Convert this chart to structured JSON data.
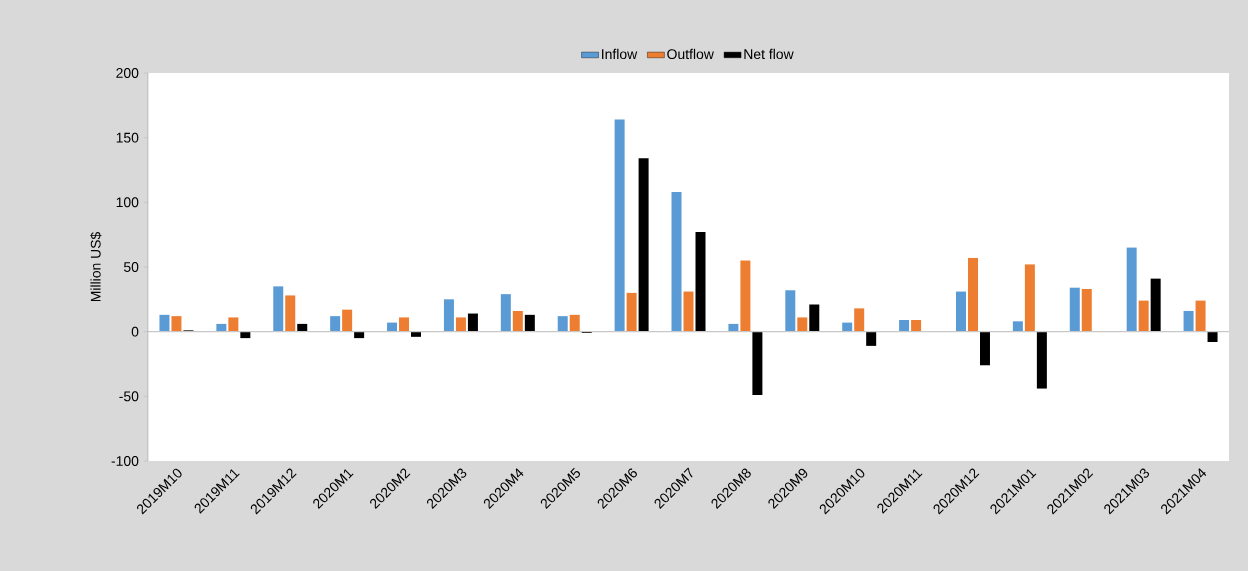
{
  "chart_data": {
    "type": "bar",
    "ylabel": "Million US$",
    "categories": [
      "2019M10",
      "2019M11",
      "2019M12",
      "2020M1",
      "2020M2",
      "2020M3",
      "2020M4",
      "2020M5",
      "2020M6",
      "2020M7",
      "2020M8",
      "2020M9",
      "2020M10",
      "2020M11",
      "2020M12",
      "2021M01",
      "2021M02",
      "2021M03",
      "2021M04"
    ],
    "series": [
      {
        "name": "Inflow",
        "color": "#5b9bd5",
        "values": [
          13,
          6,
          35,
          12,
          7,
          25,
          29,
          12,
          164,
          108,
          6,
          32,
          7,
          9,
          31,
          8,
          34,
          65,
          16
        ]
      },
      {
        "name": "Outflow",
        "color": "#ed7d31",
        "values": [
          12,
          11,
          28,
          17,
          11,
          11,
          16,
          13,
          30,
          31,
          55,
          11,
          18,
          9,
          57,
          52,
          33,
          24,
          24
        ]
      },
      {
        "name": "Net flow",
        "color": "#000000",
        "values": [
          1,
          -5,
          6,
          -5,
          -4,
          14,
          13,
          -1,
          134,
          77,
          -49,
          21,
          -11,
          0,
          -26,
          -44,
          0,
          41,
          -8
        ]
      }
    ],
    "ylim": [
      -100,
      200
    ],
    "yticks": [
      -100,
      -50,
      0,
      50,
      100,
      150,
      200
    ],
    "legend": "top"
  }
}
